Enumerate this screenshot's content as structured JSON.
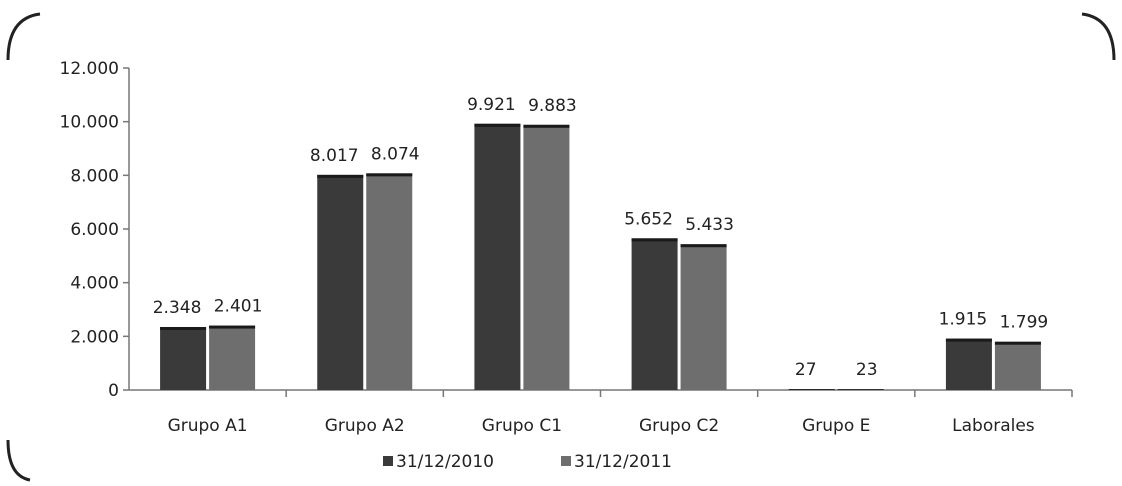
{
  "chart_data": {
    "type": "bar",
    "categories": [
      "Grupo A1",
      "Grupo A2",
      "Grupo C1",
      "Grupo C2",
      "Grupo E",
      "Laborales"
    ],
    "series": [
      {
        "name": "31/12/2010",
        "values": [
          2348,
          8017,
          9921,
          5652,
          27,
          1915
        ],
        "color": "#3a3a3a"
      },
      {
        "name": "31/12/2011",
        "values": [
          2401,
          8074,
          9883,
          5433,
          23,
          1799
        ],
        "color": "#6e6e6e"
      }
    ],
    "data_labels": [
      [
        "2.348",
        "8.017",
        "9.921",
        "5.652",
        "27",
        "1.915"
      ],
      [
        "2.401",
        "8.074",
        "9.883",
        "5.433",
        "23",
        "1.799"
      ]
    ],
    "ylim": [
      0,
      12000
    ],
    "y_ticks": [
      0,
      2000,
      4000,
      6000,
      8000,
      10000,
      12000
    ],
    "y_tick_labels": [
      "0",
      "2.000",
      "4.000",
      "6.000",
      "8.000",
      "10.000",
      "12.000"
    ],
    "legend_position": "bottom",
    "grid": false
  }
}
